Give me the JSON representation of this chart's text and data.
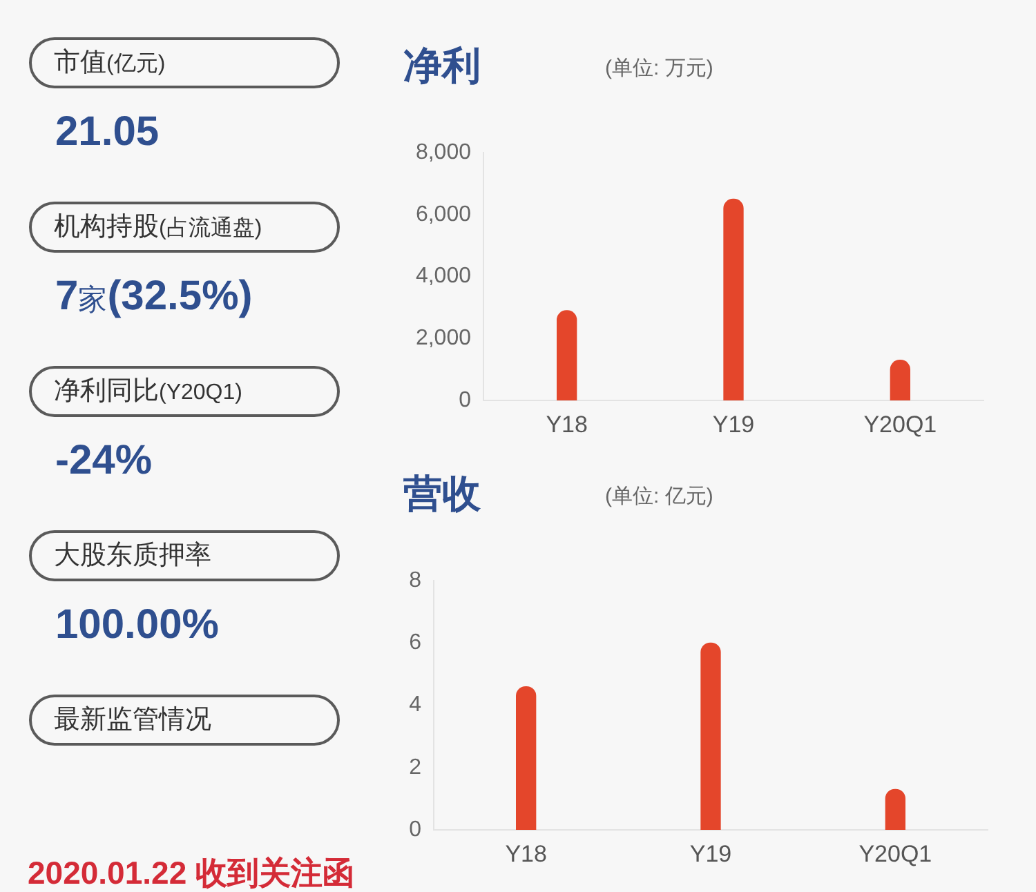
{
  "chart_data": [
    {
      "type": "other",
      "annotations": [
        "市值(亿元)",
        "21.05",
        "机构持股(占流通盘)",
        "7家(32.5%)",
        "净利同比(Y20Q1)",
        "-24%",
        "大股东质押率",
        "100.00%",
        "最新监管情况",
        "2020.01.22 收到关注函"
      ]
    },
    {
      "type": "bar",
      "title": "净利",
      "subtitle": "(单位: 万元)",
      "categories": [
        "Y18",
        "Y19",
        "Y20Q1"
      ],
      "values": [
        2900,
        6500,
        1300
      ],
      "color": "#e4462b",
      "ylim": [
        0,
        8000
      ],
      "yticks": [
        0,
        {
          "value": 2000,
          "label": "2,000"
        },
        {
          "value": 4000,
          "label": "4,000"
        },
        {
          "value": 6000,
          "label": "6,000"
        },
        {
          "value": 8000,
          "label": "8,000"
        }
      ]
    },
    {
      "type": "bar",
      "title": "营收",
      "subtitle": "(单位: 亿元)",
      "categories": [
        "Y18",
        "Y19",
        "Y20Q1"
      ],
      "values": [
        4.6,
        6.0,
        1.3
      ],
      "color": "#e4462b",
      "ylim": [
        0,
        8
      ],
      "yticks": [
        0,
        2,
        4,
        6,
        8
      ]
    }
  ]
}
